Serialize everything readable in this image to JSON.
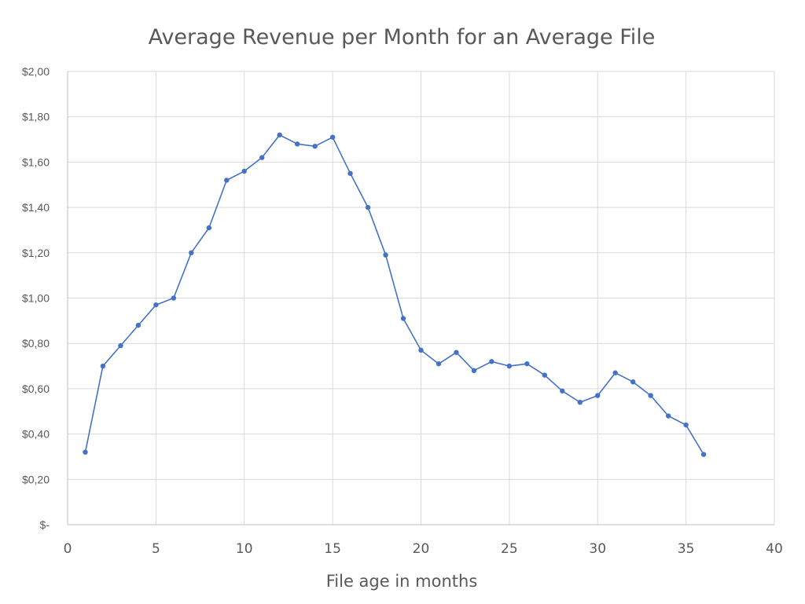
{
  "chart_data": {
    "type": "scatter",
    "title": "Average Revenue per Month for an Average File",
    "xlabel": "File age in months",
    "ylabel": "",
    "xlim": [
      0,
      40
    ],
    "ylim": [
      0,
      2.0
    ],
    "x_ticks": [
      0,
      5,
      10,
      15,
      20,
      25,
      30,
      35,
      40
    ],
    "x_tick_labels": [
      "0",
      "5",
      "10",
      "15",
      "20",
      "25",
      "30",
      "35",
      "40"
    ],
    "y_ticks": [
      0,
      0.2,
      0.4,
      0.6,
      0.8,
      1.0,
      1.2,
      1.4,
      1.6,
      1.8,
      2.0
    ],
    "y_tick_labels": [
      "$-",
      "$0,20",
      "$0,40",
      "$0,60",
      "$0,80",
      "$1,00",
      "$1,20",
      "$1,40",
      "$1,60",
      "$1,80",
      "$2,00"
    ],
    "grid": true,
    "markers": true,
    "lines": true,
    "series": [
      {
        "color": "#4472c4",
        "x": [
          1,
          2,
          3,
          4,
          5,
          6,
          7,
          8,
          9,
          10,
          11,
          12,
          13,
          14,
          15,
          16,
          17,
          18,
          19,
          20,
          21,
          22,
          23,
          24,
          25,
          26,
          27,
          28,
          29,
          30,
          31,
          32,
          33,
          34,
          35,
          36
        ],
        "y": [
          0.32,
          0.7,
          0.79,
          0.88,
          0.97,
          1.0,
          1.2,
          1.31,
          1.52,
          1.56,
          1.62,
          1.72,
          1.68,
          1.67,
          1.71,
          1.55,
          1.4,
          1.19,
          0.91,
          0.77,
          0.71,
          0.76,
          0.68,
          0.72,
          0.7,
          0.71,
          0.66,
          0.59,
          0.54,
          0.57,
          0.67,
          0.63,
          0.57,
          0.48,
          0.44,
          0.31
        ]
      }
    ]
  }
}
